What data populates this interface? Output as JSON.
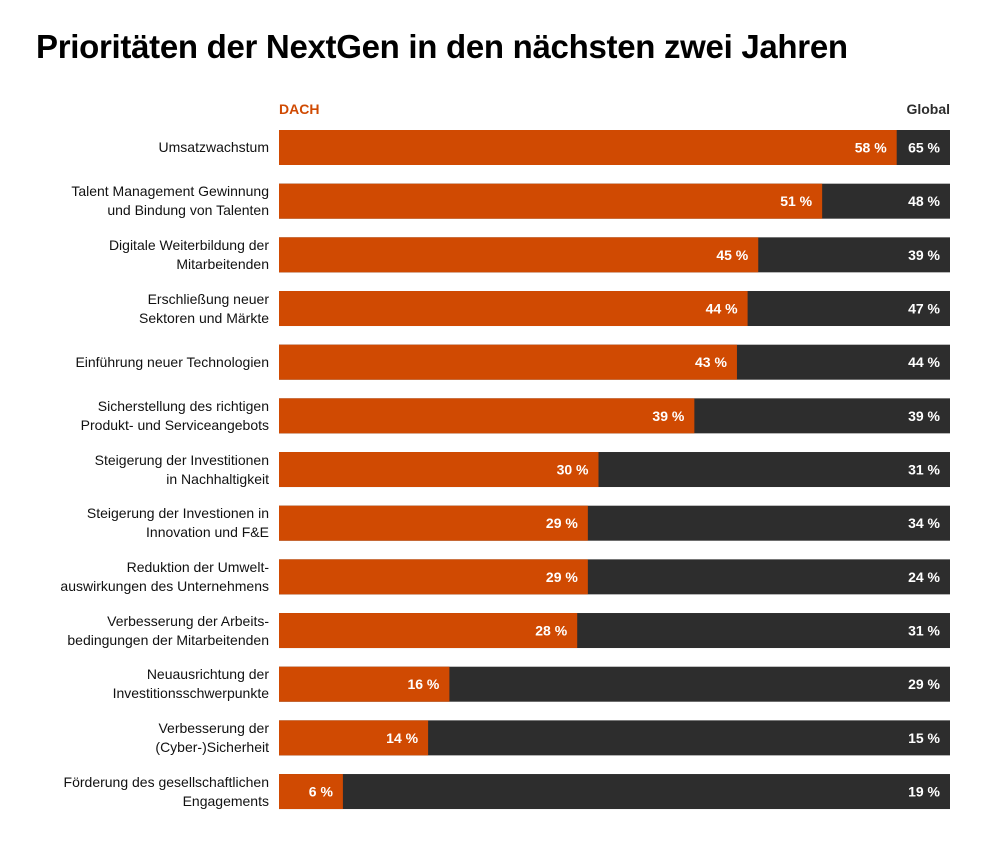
{
  "chart_data": {
    "type": "bar",
    "orientation": "horizontal",
    "title": "Prioritäten der NextGen in den nächsten zwei Jahren",
    "categories": [
      "Umsatzwachstum",
      "Talent Management Gewinnung\nund Bindung von Talenten",
      "Digitale Weiterbildung der\nMitarbeitenden",
      "Erschließung neuer\nSektoren und Märkte",
      "Einführung neuer Technologien",
      "Sicherstellung des richtigen\nProdukt- und Serviceangebots",
      "Steigerung der Investitionen\nin Nachhaltigkeit",
      "Steigerung der Investionen in\nInnovation und F&E",
      "Reduktion der Umwelt-\nauswirkungen des Unternehmens",
      "Verbesserung der Arbeits-\nbedingungen der Mitarbeitenden",
      "Neuausrichtung der\nInvestitionsschwerpunkte",
      "Verbesserung der\n(Cyber-)Sicherheit",
      "Förderung des gesellschaftlichen\nEngagements"
    ],
    "series": [
      {
        "name": "DACH",
        "color": "#d04a02",
        "values": [
          58,
          51,
          45,
          44,
          43,
          39,
          30,
          29,
          29,
          28,
          16,
          14,
          6
        ]
      },
      {
        "name": "Global",
        "color": "#2d2d2d",
        "values": [
          65,
          48,
          39,
          47,
          44,
          39,
          31,
          34,
          24,
          31,
          29,
          15,
          19
        ]
      }
    ],
    "value_suffix": " %",
    "legend": "top",
    "grid": false
  }
}
